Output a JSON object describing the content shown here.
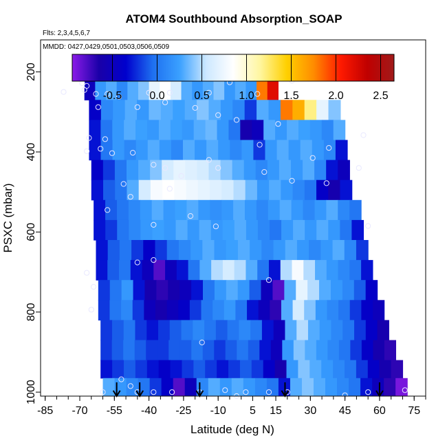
{
  "chart_data": {
    "type": "heatmap",
    "title": "ATOM4 Southbound Absorption_SOAP",
    "subtitle_flights": "Flts: 2,3,4,5,6,7",
    "subtitle_dates": "MMDD: 0427,0429,0501,0503,0506,0509",
    "xlabel": "Latitude (deg N)",
    "ylabel": "PSXC (mbar)",
    "xlim": [
      -87,
      80
    ],
    "ylim": [
      1010,
      120
    ],
    "x_ticks": [
      -85,
      -70,
      -55,
      -40,
      -25,
      -10,
      5,
      15,
      30,
      45,
      60,
      75
    ],
    "x_tick_labels": [
      "-85",
      "-70",
      "-55",
      "-40",
      "-25",
      "-10",
      "5",
      "15",
      "30",
      "45",
      "60",
      "75"
    ],
    "y_ticks": [
      200,
      400,
      600,
      800,
      1000
    ],
    "y_tick_labels": [
      "200",
      "400",
      "600",
      "800",
      "1000"
    ],
    "colorbar": {
      "range": [
        -0.95,
        2.65
      ],
      "ticks": [
        -0.5,
        0.0,
        0.5,
        1.0,
        1.5,
        2.0,
        2.5
      ],
      "tick_labels": [
        "-0.5",
        "0.0",
        "0.5",
        "1.0",
        "1.5",
        "2.0",
        "2.5"
      ],
      "colors": [
        "#8b1be8",
        "#1a00a8",
        "#0000cd",
        "#1e6ff0",
        "#3aa0ff",
        "#cde8ff",
        "#ffffff",
        "#fff6a0",
        "#ffd000",
        "#ff8c00",
        "#ff1a00",
        "#c00000",
        "#a01a1a"
      ]
    },
    "profile_arrows_lat": [
      -54,
      -44,
      -18,
      19,
      60
    ],
    "rows": [
      {
        "p_top": 170,
        "p_bot": 215,
        "lat_min": -60,
        "lat_max": -47,
        "values": [
          0.1,
          0.2,
          0.25,
          0.2
        ]
      },
      {
        "p_top": 215,
        "p_bot": 270,
        "lat_min": -68,
        "lat_max": 16,
        "values": [
          -0.5,
          0.2,
          0.3,
          0.1,
          0.3,
          0.4,
          0.7,
          0.85,
          0.6,
          0.3,
          0.2,
          0.3,
          0.4,
          0.2,
          0.3,
          0.2,
          1.8,
          2.2
        ]
      },
      {
        "p_top": 270,
        "p_bot": 320,
        "lat_min": -66,
        "lat_max": 43,
        "values": [
          -0.4,
          0.1,
          0.2,
          0.3,
          0.2,
          0.35,
          0.3,
          0.25,
          0.3,
          0.4,
          0.3,
          0.2,
          0.1,
          -0.2,
          0.3,
          0.2,
          1.8,
          1.6,
          1.2,
          0.7,
          0.4
        ]
      },
      {
        "p_top": 320,
        "p_bot": 370,
        "lat_min": -66,
        "lat_max": 45,
        "values": [
          -0.3,
          0.0,
          0.2,
          0.3,
          0.25,
          0.2,
          0.3,
          0.25,
          0.2,
          0.3,
          0.35,
          0.2,
          0.0,
          -0.6,
          -0.5,
          0.3,
          0.2,
          0.3,
          0.25,
          0.2,
          0.1,
          0.3
        ]
      },
      {
        "p_top": 370,
        "p_bot": 420,
        "lat_min": -66,
        "lat_max": 46,
        "values": [
          -0.3,
          0.0,
          0.2,
          0.1,
          0.2,
          0.3,
          0.2,
          0.1,
          0.3,
          0.2,
          0.3,
          0.2,
          0.1,
          0.2,
          -0.2,
          0.2,
          0.3,
          0.2,
          0.3,
          0.2,
          0.1,
          -0.3
        ]
      },
      {
        "p_top": 420,
        "p_bot": 470,
        "lat_min": -65,
        "lat_max": 47,
        "values": [
          -0.4,
          -0.2,
          0.0,
          0.2,
          0.3,
          0.4,
          0.6,
          0.7,
          0.65,
          0.6,
          0.5,
          0.4,
          0.3,
          0.2,
          0.1,
          0.2,
          0.3,
          0.2,
          0.3,
          0.1,
          -0.3,
          -0.5
        ]
      },
      {
        "p_top": 470,
        "p_bot": 520,
        "lat_min": -65,
        "lat_max": 48,
        "values": [
          -0.3,
          -0.1,
          0.0,
          0.3,
          0.6,
          0.8,
          0.85,
          0.8,
          0.75,
          0.7,
          0.65,
          0.6,
          0.5,
          0.35,
          0.2,
          0.3,
          0.2,
          0.1,
          0.0,
          -0.4,
          -0.6,
          -0.3
        ]
      },
      {
        "p_top": 520,
        "p_bot": 570,
        "lat_min": -64,
        "lat_max": 52,
        "values": [
          -0.3,
          -0.1,
          0.0,
          0.1,
          0.2,
          0.3,
          0.2,
          0.25,
          0.3,
          0.2,
          0.15,
          0.2,
          0.3,
          0.2,
          0.1,
          0.2,
          0.3,
          0.2,
          0.1,
          0.2,
          0.3,
          0.1,
          0.0
        ]
      },
      {
        "p_top": 570,
        "p_bot": 620,
        "lat_min": -64,
        "lat_max": 53,
        "values": [
          -0.3,
          -0.2,
          0.0,
          0.1,
          0.2,
          0.25,
          0.2,
          0.3,
          0.2,
          0.3,
          0.2,
          0.25,
          0.3,
          0.2,
          0.1,
          0.0,
          0.2,
          0.3,
          0.2,
          0.3,
          0.2,
          0.0,
          -0.3
        ]
      },
      {
        "p_top": 620,
        "p_bot": 670,
        "lat_min": -63,
        "lat_max": 55,
        "values": [
          -0.3,
          -0.1,
          0.0,
          -0.2,
          -0.4,
          -0.2,
          0.0,
          0.1,
          0.2,
          0.3,
          0.2,
          0.25,
          0.3,
          0.2,
          0.1,
          0.2,
          0.3,
          0.2,
          0.1,
          0.2,
          0.3,
          0.1,
          -0.2
        ]
      },
      {
        "p_top": 670,
        "p_bot": 720,
        "lat_min": -63,
        "lat_max": 57,
        "values": [
          -0.3,
          -0.1,
          0.0,
          -0.3,
          -0.5,
          -0.8,
          -0.5,
          -0.3,
          0.0,
          0.3,
          0.5,
          0.6,
          0.5,
          0.3,
          0.0,
          -0.3,
          0.5,
          0.8,
          0.5,
          0.3,
          0.2,
          0.1,
          0.0,
          -0.3
        ]
      },
      {
        "p_top": 720,
        "p_bot": 770,
        "lat_min": -62,
        "lat_max": 59,
        "values": [
          -0.2,
          0.0,
          0.2,
          -0.3,
          -0.6,
          -0.7,
          -0.6,
          -0.5,
          -0.3,
          0.0,
          0.2,
          0.3,
          0.2,
          -0.1,
          -0.5,
          -0.8,
          0.3,
          0.7,
          0.5,
          0.3,
          0.2,
          0.1,
          -0.1,
          -0.4
        ]
      },
      {
        "p_top": 770,
        "p_bot": 820,
        "lat_min": -62,
        "lat_max": 62,
        "values": [
          -0.2,
          0.0,
          0.1,
          -0.2,
          -0.5,
          -0.6,
          -0.5,
          -0.4,
          -0.2,
          0.0,
          0.1,
          0.2,
          0.0,
          -0.3,
          -0.5,
          -0.7,
          0.3,
          0.6,
          0.4,
          0.2,
          0.1,
          0.0,
          -0.2,
          -0.4,
          -0.5
        ]
      },
      {
        "p_top": 820,
        "p_bot": 870,
        "lat_min": -61,
        "lat_max": 64,
        "values": [
          -0.2,
          -0.1,
          0.0,
          -0.2,
          -0.3,
          -0.2,
          -0.1,
          0.0,
          0.1,
          0.0,
          -0.1,
          0.0,
          0.1,
          0.0,
          -0.3,
          -0.5,
          0.3,
          0.5,
          0.3,
          0.2,
          0.1,
          0.0,
          -0.2,
          -0.4,
          -0.6
        ]
      },
      {
        "p_top": 870,
        "p_bot": 920,
        "lat_min": -61,
        "lat_max": 67,
        "values": [
          -0.2,
          -0.1,
          0.0,
          -0.1,
          -0.2,
          -0.2,
          -0.1,
          -0.1,
          0.0,
          -0.1,
          -0.2,
          -0.1,
          0.0,
          -0.1,
          -0.3,
          -0.5,
          0.2,
          0.4,
          0.3,
          0.2,
          0.1,
          0.0,
          -0.2,
          -0.4,
          -0.6,
          -0.7
        ]
      },
      {
        "p_top": 920,
        "p_bot": 965,
        "lat_min": -61,
        "lat_max": 70,
        "values": [
          -0.3,
          -0.2,
          -0.1,
          -0.2,
          -0.3,
          -0.4,
          -0.3,
          -0.2,
          -0.1,
          -0.2,
          -0.3,
          -0.2,
          -0.1,
          -0.2,
          -0.4,
          -0.6,
          0.2,
          0.4,
          0.3,
          0.2,
          0.1,
          0.0,
          -0.2,
          -0.4,
          -0.6,
          -0.7
        ]
      },
      {
        "p_top": 965,
        "p_bot": 1008,
        "lat_min": -60,
        "lat_max": 72,
        "values": [
          0.3,
          0.2,
          0.1,
          0.0,
          -0.2,
          -0.4,
          -0.8,
          -0.5,
          0.1,
          0.3,
          0.2,
          0.3,
          0.2,
          0.1,
          0.0,
          -0.3,
          0.3,
          0.4,
          0.3,
          0.2,
          0.1,
          0.0,
          -0.3,
          -0.5,
          -0.7,
          -0.9
        ]
      }
    ],
    "circles": [
      [
        -61,
        210
      ],
      [
        -50,
        210
      ],
      [
        -69,
        228
      ],
      [
        -67,
        235
      ],
      [
        -68,
        245
      ],
      [
        -77,
        250
      ],
      [
        -63,
        255
      ],
      [
        -58,
        255
      ],
      [
        -53,
        262
      ],
      [
        -40,
        252
      ],
      [
        -31,
        252
      ],
      [
        -14,
        252
      ],
      [
        -5,
        226
      ],
      [
        7,
        255
      ],
      [
        22,
        222
      ],
      [
        -33,
        276
      ],
      [
        -45,
        288
      ],
      [
        -20,
        290
      ],
      [
        -62,
        288
      ],
      [
        -10,
        308
      ],
      [
        -66,
        365
      ],
      [
        -59,
        368
      ],
      [
        -67,
        398
      ],
      [
        -61,
        392
      ],
      [
        -56,
        403
      ],
      [
        -47,
        402
      ],
      [
        -38,
        432
      ],
      [
        -26,
        460
      ],
      [
        -51,
        480
      ],
      [
        -10,
        440
      ],
      [
        10,
        450
      ],
      [
        22,
        472
      ],
      [
        37,
        478
      ],
      [
        51,
        440
      ],
      [
        -48,
        512
      ],
      [
        -31,
        492
      ],
      [
        -58,
        545
      ],
      [
        -22,
        560
      ],
      [
        -38,
        582
      ],
      [
        -11,
        586
      ],
      [
        55,
        585
      ],
      [
        -45,
        676
      ],
      [
        -38,
        670
      ],
      [
        -67,
        702
      ],
      [
        -64,
        737
      ],
      [
        -65,
        794
      ],
      [
        -17,
        876
      ],
      [
        12,
        720
      ],
      [
        -52,
        968
      ],
      [
        -48,
        985
      ],
      [
        -45,
        1000
      ],
      [
        -38,
        1000
      ],
      [
        -30,
        1000
      ],
      [
        -18,
        1000
      ],
      [
        -7,
        995
      ],
      [
        2,
        1000
      ],
      [
        12,
        1000
      ],
      [
        20,
        1000
      ],
      [
        -60,
        1000
      ],
      [
        45,
        1008
      ],
      [
        55,
        1000
      ],
      [
        71,
        995
      ],
      [
        -2,
        1010
      ],
      [
        16,
        330
      ],
      [
        38,
        390
      ],
      [
        -14,
        420
      ],
      [
        8,
        382
      ],
      [
        31,
        415
      ],
      [
        53,
        358
      ],
      [
        -2,
        320
      ],
      [
        -33,
        440
      ]
    ]
  }
}
